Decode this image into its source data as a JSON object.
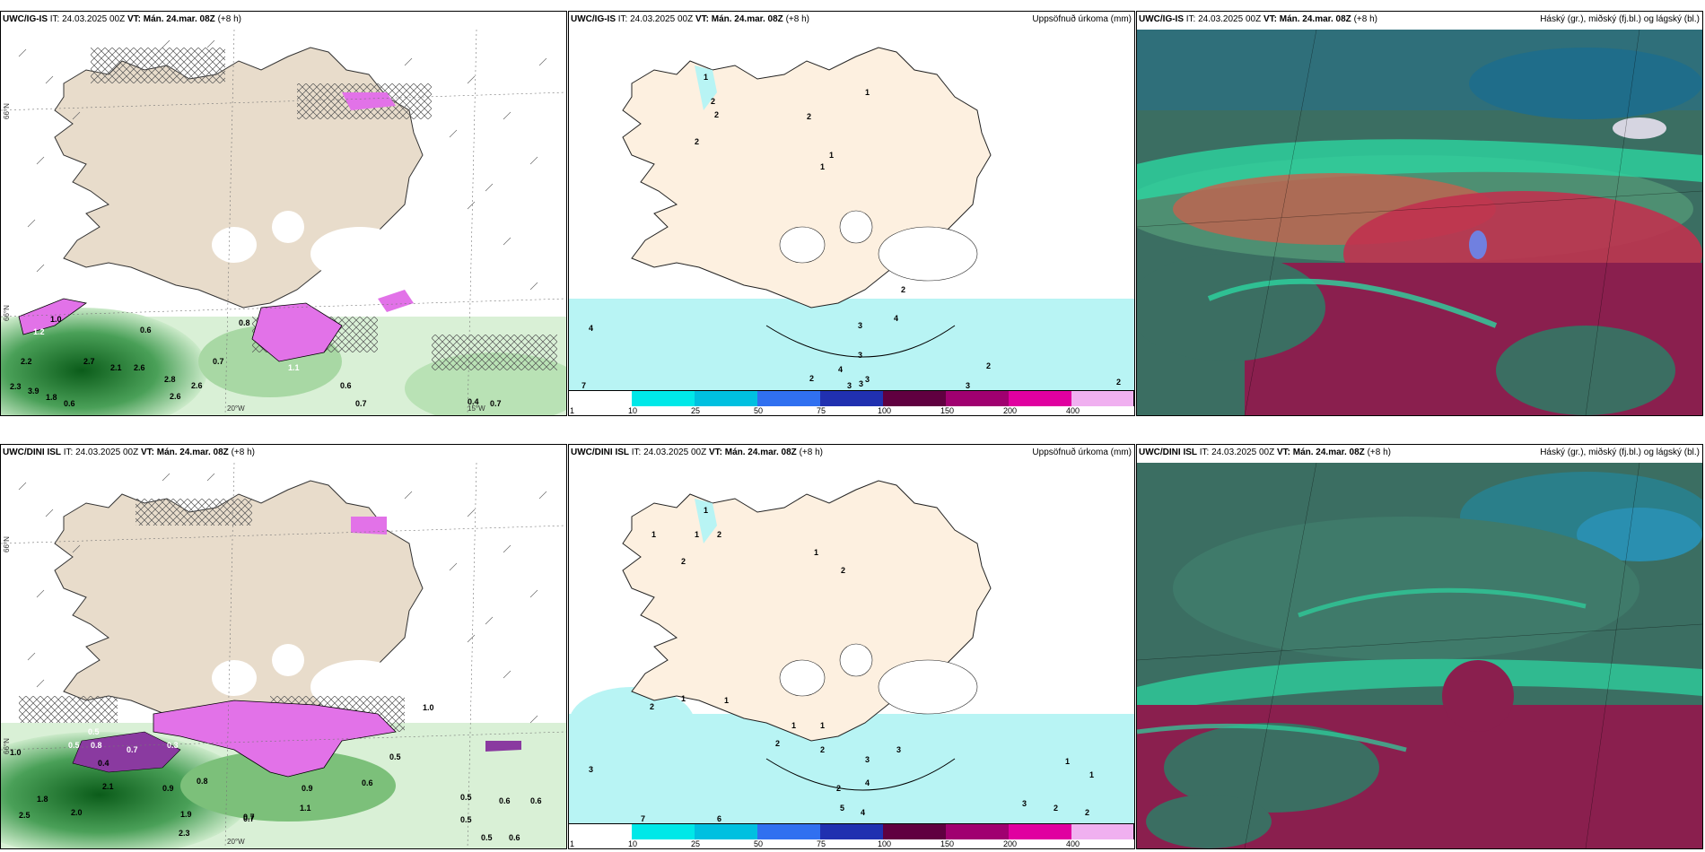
{
  "panels": [
    {
      "model": "UWC/IG-IS",
      "it": "IT: 24.03.2025 00Z",
      "vt_label": "VT:",
      "vt": "Mán. 24.mar. 08Z",
      "lead": "(+8 h)",
      "right": ""
    },
    {
      "model": "UWC/IG-IS",
      "it": "IT: 24.03.2025 00Z",
      "vt_label": "VT:",
      "vt": "Mán. 24.mar. 08Z",
      "lead": "(+8 h)",
      "right": "Uppsöfnuð úrkoma (mm)"
    },
    {
      "model": "UWC/IG-IS",
      "it": "IT: 24.03.2025 00Z",
      "vt_label": "VT:",
      "vt": "Mán. 24.mar. 08Z",
      "lead": "(+8 h)",
      "right": "Háský (gr.), miðský (fj.bl.) og lágský (bl.)"
    },
    {
      "model": "UWC/DINI ISL",
      "it": "IT: 24.03.2025 00Z",
      "vt_label": "VT:",
      "vt": "Mán. 24.mar. 08Z",
      "lead": "(+8 h)",
      "right": ""
    },
    {
      "model": "UWC/DINI ISL",
      "it": "IT: 24.03.2025 00Z",
      "vt_label": "VT:",
      "vt": "Mán. 24.mar. 08Z",
      "lead": "(+8 h)",
      "right": "Uppsöfnuð úrkoma (mm)"
    },
    {
      "model": "UWC/DINI ISL",
      "it": "IT: 24.03.2025 00Z",
      "vt_label": "VT:",
      "vt": "Mán. 24.mar. 08Z",
      "lead": "(+8 h)",
      "right": "Háský (gr.), miðský (fj.bl.) og lágský (bl.)"
    }
  ],
  "axes": {
    "lat": "66°N",
    "lon_a": "20°W",
    "lon_b": "15°W",
    "lat_b": "66°N"
  },
  "colorbar": {
    "ticks": [
      "1",
      "10",
      "25",
      "50",
      "75",
      "100",
      "150",
      "200",
      "400"
    ],
    "colors": [
      "#ffffff",
      "#00e8e8",
      "#00c0e0",
      "#3070f0",
      "#2030b0",
      "#600040",
      "#a00070",
      "#e000a0",
      "#f0b0f0"
    ]
  },
  "precip_labels": {
    "p1": [
      "1.0",
      "1.2",
      "0.6",
      "2.2",
      "2.7",
      "2.1",
      "2.6",
      "2.8",
      "2.6",
      "1.8",
      "0.7",
      "2.3",
      "3.9",
      "0.6",
      "2.6",
      "0.8",
      "0.6",
      "0.7",
      "0.4",
      "0.7",
      "1.1"
    ],
    "p4": [
      "1.0",
      "0.5",
      "0.5",
      "0.8",
      "0.4",
      "0.7",
      "2.1",
      "1.9",
      "2.0",
      "2.5",
      "0.9",
      "0.8",
      "0.7",
      "0.5",
      "0.6",
      "0.5",
      "0.6",
      "0.6",
      "0.5",
      "0.5",
      "0.6",
      "0.7",
      "1.8",
      "2.3",
      "1.0",
      "0.9",
      "0.3",
      "1.1"
    ]
  },
  "accum_labels": {
    "p2": [
      "1",
      "2",
      "2",
      "2",
      "1",
      "2",
      "1",
      "1",
      "4",
      "2",
      "3",
      "4",
      "3",
      "3",
      "2",
      "3",
      "3",
      "4",
      "7",
      "2",
      "3",
      "2"
    ],
    "p5": [
      "1",
      "1",
      "1",
      "2",
      "2",
      "1",
      "2",
      "2",
      "1",
      "1",
      "1",
      "2",
      "2",
      "1",
      "3",
      "3",
      "4",
      "2",
      "5",
      "4",
      "7",
      "6",
      "3",
      "3",
      "2",
      "2",
      "1",
      "1"
    ]
  }
}
